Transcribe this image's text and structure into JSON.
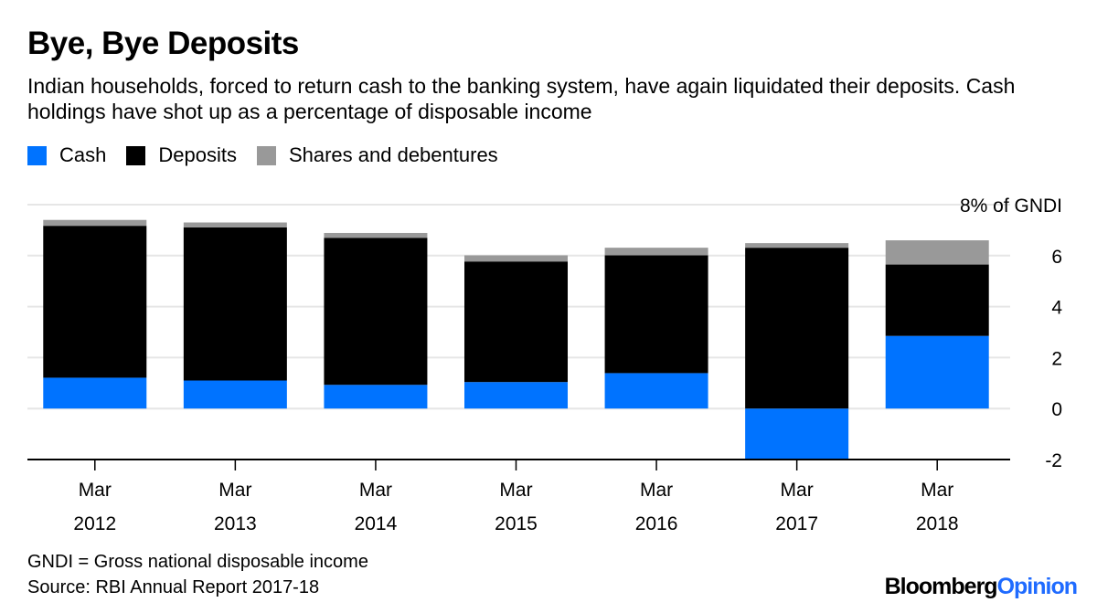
{
  "title": "Bye, Bye Deposits",
  "subtitle": "Indian households, forced to return cash to the banking system, have again liquidated their deposits. Cash holdings have shot up as a percentage of disposable income",
  "footnote": "GNDI = Gross national disposable income",
  "source": "Source: RBI Annual Report 2017-18",
  "brand": {
    "part1": "Bloomberg",
    "part2": "Opinion"
  },
  "chart_data": {
    "type": "bar",
    "stacked": true,
    "categories": [
      [
        "Mar",
        "2012"
      ],
      [
        "Mar",
        "2013"
      ],
      [
        "Mar",
        "2014"
      ],
      [
        "Mar",
        "2015"
      ],
      [
        "Mar",
        "2016"
      ],
      [
        "Mar",
        "2017"
      ],
      [
        "Mar",
        "2018"
      ]
    ],
    "series": [
      {
        "name": "Cash",
        "color": "#0073ff",
        "values": [
          1.21,
          1.1,
          0.93,
          1.04,
          1.39,
          -1.98,
          2.85
        ]
      },
      {
        "name": "Deposits",
        "color": "#000000",
        "values": [
          5.96,
          6.01,
          5.77,
          4.73,
          4.62,
          6.31,
          2.8
        ]
      },
      {
        "name": "Shares and debentures",
        "color": "#999999",
        "values": [
          0.23,
          0.19,
          0.19,
          0.24,
          0.3,
          0.18,
          0.95
        ]
      }
    ],
    "ylim": [
      -2,
      8
    ],
    "yticks": [
      -2,
      0,
      2,
      4,
      6,
      8
    ],
    "ytick_labels": [
      "-2",
      "0",
      "2",
      "4",
      "6",
      "8% of GNDI"
    ],
    "y_axis_side": "right",
    "grid": true,
    "legend_placement": "top-left"
  }
}
